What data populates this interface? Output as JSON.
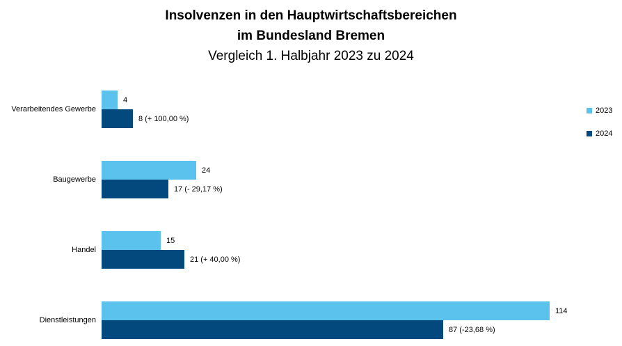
{
  "title": {
    "line1": "Insolvenzen in den Hauptwirtschaftsbereichen",
    "line2": "im Bundesland Bremen",
    "subtitle": "Vergleich 1. Halbjahr 2023 zu 2024"
  },
  "legend": [
    {
      "label": "2023",
      "color": "#5BC2EE"
    },
    {
      "label": "2024",
      "color": "#03497E"
    }
  ],
  "chart_data": {
    "type": "bar",
    "orientation": "horizontal",
    "title": "Insolvenzen in den Hauptwirtschaftsbereichen im Bundesland Bremen",
    "subtitle": "Vergleich 1. Halbjahr 2023 zu 2024",
    "categories": [
      "Verarbeitendes Gewerbe",
      "Baugewerbe",
      "Handel",
      "Dienstleistungen"
    ],
    "series": [
      {
        "name": "2023",
        "color": "#5BC2EE",
        "values": [
          4,
          24,
          15,
          114
        ],
        "data_labels": [
          "4",
          "24",
          "15",
          "114"
        ]
      },
      {
        "name": "2024",
        "color": "#03497E",
        "values": [
          8,
          17,
          21,
          87
        ],
        "data_labels": [
          "8 (+ 100,00 %)",
          "17 (- 29,17 %)",
          "21 (+ 40,00 %)",
          "87 (-23,68 %)"
        ]
      }
    ],
    "value_axis": {
      "min": 0,
      "max": 114,
      "visible": false
    },
    "category_axis_visible": false,
    "gridlines": false,
    "legend_position": "right",
    "background_color": "#FFFFFF",
    "text_color": "#000000"
  }
}
